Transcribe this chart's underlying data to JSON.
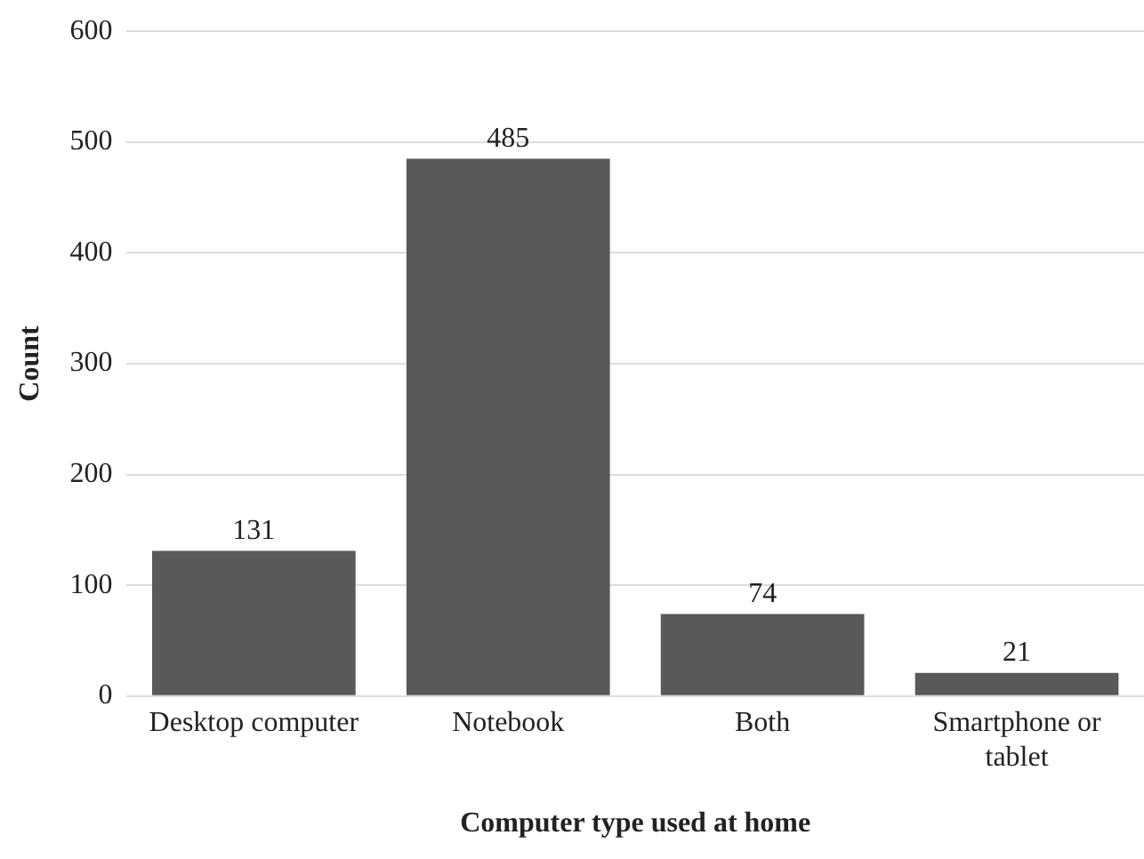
{
  "chart_data": {
    "type": "bar",
    "xlabel": "Computer type used at home",
    "ylabel": "Count",
    "categories": [
      "Desktop computer",
      "Notebook",
      "Both",
      "Smartphone or tablet"
    ],
    "values": [
      131,
      485,
      74,
      21
    ],
    "color": "#595959",
    "ylim": [
      0,
      600
    ],
    "yticks": [
      0,
      100,
      200,
      300,
      400,
      500,
      600
    ],
    "grid": "y",
    "data_labels": true,
    "legend": false
  }
}
